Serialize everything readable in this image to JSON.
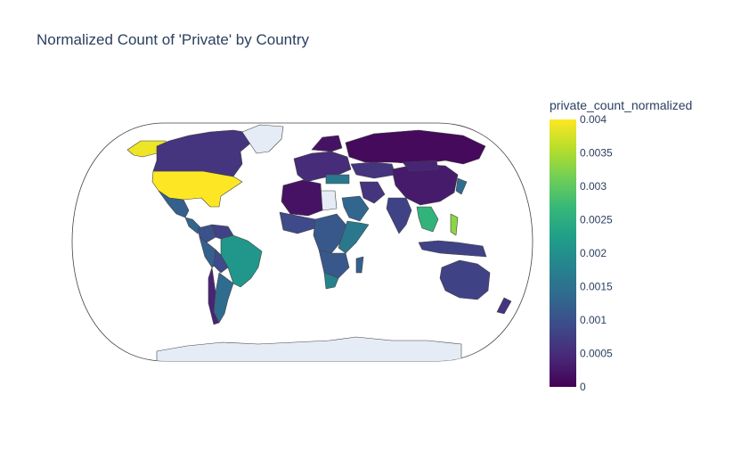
{
  "chart_data": {
    "type": "choropleth",
    "title": "Normalized Count of 'Private' by Country",
    "projection": "natural earth",
    "colorscale": "Viridis",
    "colorbar": {
      "title": "private_count_normalized",
      "range": [
        0,
        0.004
      ],
      "ticks": [
        0,
        0.0005,
        0.001,
        0.0015,
        0.002,
        0.0025,
        0.003,
        0.0035,
        0.004
      ],
      "tick_labels": [
        "0",
        "0.0005",
        "0.001",
        "0.0015",
        "0.002",
        "0.0025",
        "0.003",
        "0.0035",
        "0.004"
      ]
    },
    "no_data_color": "#e5ecf6",
    "regions": [
      {
        "name": "United States",
        "value": 0.004
      },
      {
        "name": "Alaska",
        "value": 0.0039
      },
      {
        "name": "Canada",
        "value": 0.0006
      },
      {
        "name": "Greenland",
        "value": null
      },
      {
        "name": "Mexico",
        "value": 0.0012
      },
      {
        "name": "Central America",
        "value": 0.0013
      },
      {
        "name": "Colombia",
        "value": 0.001
      },
      {
        "name": "Venezuela",
        "value": 0.0008
      },
      {
        "name": "Brazil",
        "value": 0.0021
      },
      {
        "name": "Peru",
        "value": 0.0012
      },
      {
        "name": "Bolivia",
        "value": 0.0009
      },
      {
        "name": "Argentina",
        "value": 0.0014
      },
      {
        "name": "Chile",
        "value": 0.0004
      },
      {
        "name": "Russia",
        "value": 0.0001
      },
      {
        "name": "Europe",
        "value": 0.0005
      },
      {
        "name": "Scandinavia",
        "value": 0.0002
      },
      {
        "name": "Kazakhstan",
        "value": 0.0006
      },
      {
        "name": "China",
        "value": 0.0003
      },
      {
        "name": "Mongolia",
        "value": 0.0004
      },
      {
        "name": "India",
        "value": 0.0008
      },
      {
        "name": "Iran",
        "value": 0.0006
      },
      {
        "name": "Saudi Arabia",
        "value": 0.0013
      },
      {
        "name": "Egypt",
        "value": null
      },
      {
        "name": "Turkey",
        "value": 0.0016
      },
      {
        "name": "North Africa",
        "value": 0.0002
      },
      {
        "name": "West Africa",
        "value": 0.0009
      },
      {
        "name": "Central Africa",
        "value": 0.0011
      },
      {
        "name": "East Africa",
        "value": 0.0016
      },
      {
        "name": "Southern Africa",
        "value": 0.0011
      },
      {
        "name": "South Africa",
        "value": 0.0018
      },
      {
        "name": "Madagascar",
        "value": 0.0012
      },
      {
        "name": "Southeast Asia",
        "value": 0.0026
      },
      {
        "name": "Philippines",
        "value": 0.0033
      },
      {
        "name": "Indonesia",
        "value": 0.0008
      },
      {
        "name": "Japan",
        "value": 0.0014
      },
      {
        "name": "Australia",
        "value": 0.0008
      },
      {
        "name": "New Zealand",
        "value": 0.0006
      },
      {
        "name": "Antarctica",
        "value": null
      }
    ]
  }
}
